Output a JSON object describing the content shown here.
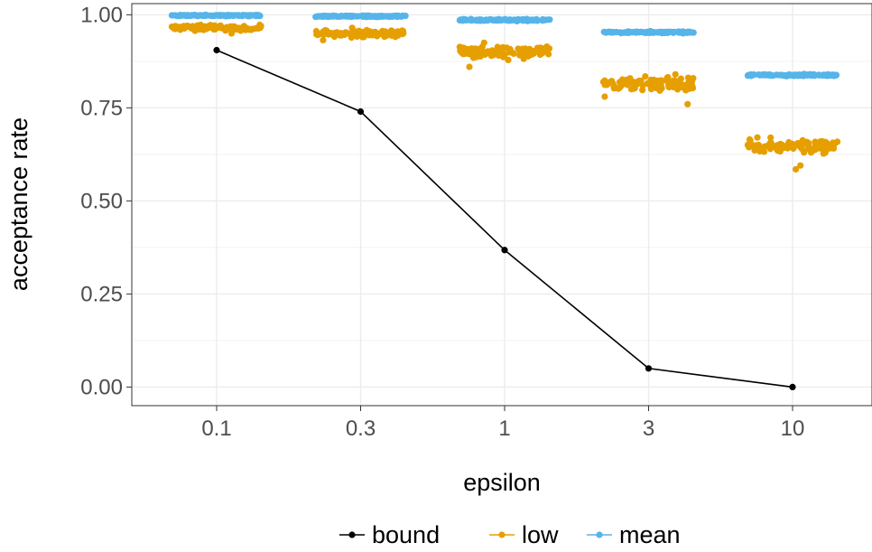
{
  "chart_data": {
    "type": "scatter",
    "xlabel": "epsilon",
    "ylabel": "acceptance rate",
    "x_categories": [
      "0.1",
      "0.3",
      "1",
      "3",
      "10"
    ],
    "y_ticks": [
      "0.00",
      "0.25",
      "0.50",
      "0.75",
      "1.00"
    ],
    "ylim": [
      -0.05,
      1.03
    ],
    "grid": true,
    "legend_position": "bottom",
    "series": [
      {
        "name": "bound",
        "color": "#000000",
        "kind": "line+points",
        "values": [
          0.905,
          0.74,
          0.368,
          0.05,
          0.0
        ]
      },
      {
        "name": "low",
        "color": "#E69F00",
        "kind": "jitter",
        "groups": [
          {
            "center": 0.965,
            "spread": 0.012,
            "outliers": [
              0.95
            ]
          },
          {
            "center": 0.95,
            "spread": 0.015,
            "outliers": [
              0.932,
              0.965
            ]
          },
          {
            "center": 0.9,
            "spread": 0.025,
            "outliers": [
              0.86,
              0.925
            ]
          },
          {
            "center": 0.815,
            "spread": 0.03,
            "outliers": [
              0.76,
              0.78,
              0.84
            ]
          },
          {
            "center": 0.645,
            "spread": 0.03,
            "outliers": [
              0.585,
              0.595,
              0.67
            ]
          }
        ]
      },
      {
        "name": "mean",
        "color": "#56B4E9",
        "kind": "jitter",
        "groups": [
          {
            "center": 0.998,
            "spread": 0.003,
            "outliers": []
          },
          {
            "center": 0.996,
            "spread": 0.003,
            "outliers": []
          },
          {
            "center": 0.986,
            "spread": 0.004,
            "outliers": []
          },
          {
            "center": 0.953,
            "spread": 0.004,
            "outliers": []
          },
          {
            "center": 0.838,
            "spread": 0.004,
            "outliers": []
          }
        ]
      }
    ]
  }
}
